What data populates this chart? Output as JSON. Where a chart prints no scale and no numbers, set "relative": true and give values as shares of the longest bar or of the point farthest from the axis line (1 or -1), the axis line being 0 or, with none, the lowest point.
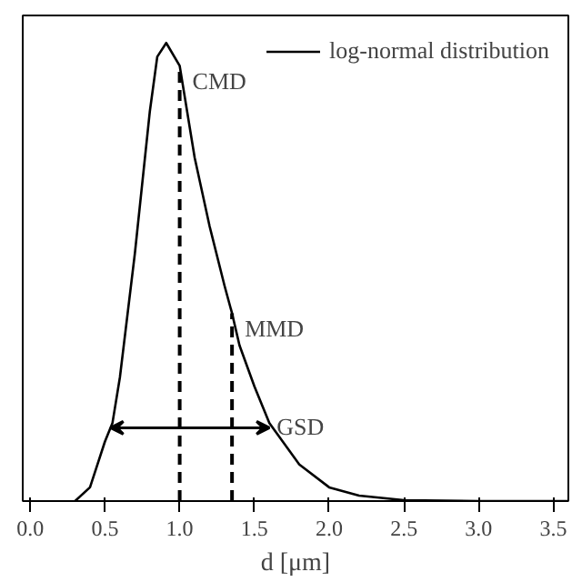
{
  "chart_data": {
    "type": "line",
    "relative": true,
    "xlabel": "d [μm]",
    "xlim": [
      -0.05,
      3.6
    ],
    "xticks": [
      {
        "value": 0,
        "label": "0.0"
      },
      {
        "value": 0.5,
        "label": "0.5"
      },
      {
        "value": 1,
        "label": "1.0"
      },
      {
        "value": 1.5,
        "label": "1.5"
      },
      {
        "value": 2,
        "label": "2.0"
      },
      {
        "value": 2.5,
        "label": "2.5"
      },
      {
        "value": 3,
        "label": "3.0"
      },
      {
        "value": 3.5,
        "label": "3.5"
      }
    ],
    "tick_labels": "x",
    "legend": "top right",
    "grid": false,
    "marker": "none",
    "line_style": "solid",
    "series": [
      {
        "name": "log-normal distribution",
        "color": "#000000",
        "x": [
          0.3,
          0.4,
          0.5,
          0.55,
          0.6,
          0.7,
          0.8,
          0.85,
          0.91,
          1.0,
          1.1,
          1.2,
          1.3,
          1.35,
          1.4,
          1.5,
          1.6,
          1.8,
          2.0,
          2.2,
          2.5,
          3.0,
          3.6
        ],
        "values": [
          0,
          0.03,
          0.13,
          0.17,
          0.27,
          0.54,
          0.85,
          0.97,
          1.0,
          0.95,
          0.75,
          0.6,
          0.47,
          0.41,
          0.34,
          0.25,
          0.17,
          0.08,
          0.03,
          0.012,
          0.002,
          0,
          0
        ]
      }
    ],
    "ref_lines": [
      {
        "axis": "x",
        "value": 1.0,
        "label": "CMD",
        "line_style": "dashed"
      },
      {
        "axis": "x",
        "value": 1.35,
        "label": "MMD",
        "line_style": "dashed"
      }
    ],
    "annotations": [
      {
        "text": "GSD",
        "x": 1.6,
        "y": 0.16
      }
    ]
  }
}
